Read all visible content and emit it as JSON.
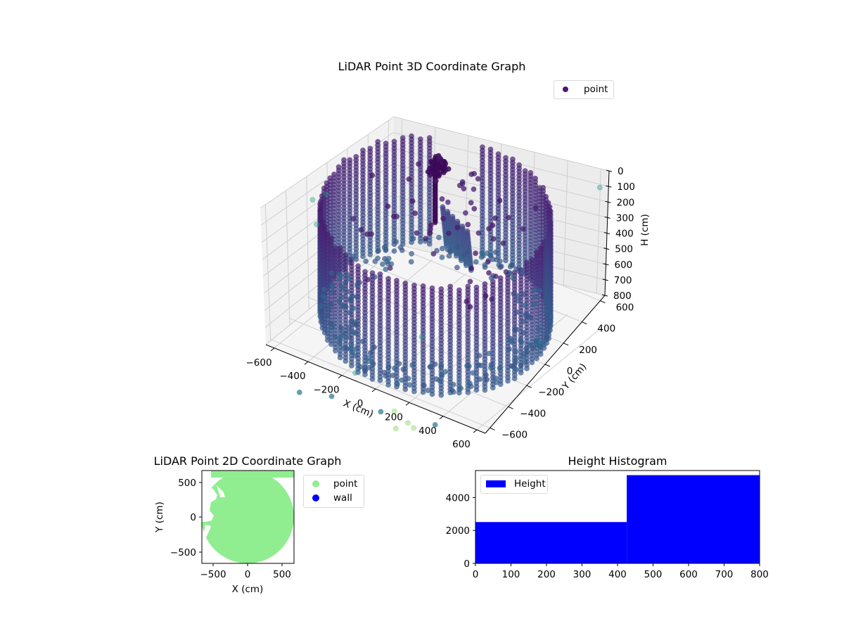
{
  "chart_data": [
    {
      "type": "scatter",
      "projection": "3d",
      "title": "LiDAR Point 3D Coordinate Graph",
      "xlabel": "X (cm)",
      "ylabel": "Y (cm)",
      "zlabel": "H (cm)",
      "xticks": [
        "-600",
        "-400",
        "-200",
        "0",
        "200",
        "400",
        "600"
      ],
      "yticks": [
        "-600",
        "-400",
        "-200",
        "0",
        "200",
        "400",
        "600"
      ],
      "zticks": [
        "0",
        "100",
        "200",
        "300",
        "400",
        "500",
        "600",
        "700",
        "800"
      ],
      "xlim": [
        -650,
        650
      ],
      "ylim": [
        -650,
        650
      ],
      "zlim": [
        800,
        0
      ],
      "z_inverted": true,
      "colormap": "viridis",
      "legend": [
        {
          "label": "point",
          "color": "#4b1a6e"
        }
      ],
      "legend_position": "upper right",
      "grid": true,
      "description": "Dense cylindrical wall of points (radius ~600 cm) spanning heights ~100-800 cm, with a vertical column near the back center and scattered outliers."
    },
    {
      "type": "scatter",
      "title": "LiDAR Point 2D Coordinate Graph",
      "xlabel": "X (cm)",
      "ylabel": "Y (cm)",
      "xticks": [
        "−500",
        "0",
        "500"
      ],
      "yticks": [
        "500",
        "0",
        "−500"
      ],
      "xlim": [
        -680,
        680
      ],
      "ylim": [
        -680,
        680
      ],
      "series": [
        {
          "name": "point",
          "color": "#90ee90"
        },
        {
          "name": "wall",
          "color": "#0000ff"
        }
      ],
      "legend_position": "outside right",
      "description": "Filled green disc of radius ~680 cm with a few gaps on the left edge."
    },
    {
      "type": "bar",
      "subtype": "histogram",
      "title": "Height Histogram",
      "xlabel": "",
      "ylabel": "",
      "bins": [
        [
          0,
          426
        ],
        [
          426,
          800
        ]
      ],
      "values": [
        2510,
        5360
      ],
      "xticks": [
        "0",
        "100",
        "200",
        "300",
        "400",
        "500",
        "600",
        "700",
        "800"
      ],
      "yticks": [
        "0",
        "2000",
        "4000"
      ],
      "xlim": [
        0,
        800
      ],
      "ylim": [
        0,
        5640
      ],
      "legend": [
        {
          "label": "Height",
          "color": "#0000ff"
        }
      ],
      "legend_position": "upper left",
      "grid": false
    }
  ],
  "plot3d": {
    "title": "LiDAR Point 3D Coordinate Graph",
    "legend_label": "point",
    "xlabel": "X (cm)",
    "ylabel": "Y (cm)",
    "zlabel": "H (cm)",
    "xticks": [
      "−600",
      "−400",
      "−200",
      "0",
      "200",
      "400",
      "600"
    ],
    "yticks": [
      "−600",
      "−400",
      "−200",
      "0",
      "200",
      "400",
      "600"
    ],
    "zticks": [
      "0",
      "100",
      "200",
      "300",
      "400",
      "500",
      "600",
      "700",
      "800"
    ]
  },
  "plot2d": {
    "title": "LiDAR Point 2D Coordinate Graph",
    "xlabel": "X (cm)",
    "ylabel": "Y (cm)",
    "xticks": [
      "−500",
      "0",
      "500"
    ],
    "yticks": [
      "500",
      "0",
      "−500"
    ],
    "legend": [
      {
        "label": "point",
        "color": "#90ee90"
      },
      {
        "label": "wall",
        "color": "#0000ff"
      }
    ]
  },
  "histogram": {
    "title": "Height Histogram",
    "legend_label": "Height",
    "color": "#0000ff",
    "xticks": [
      "0",
      "100",
      "200",
      "300",
      "400",
      "500",
      "600",
      "700",
      "800"
    ],
    "yticks": [
      "0",
      "2000",
      "4000"
    ]
  }
}
